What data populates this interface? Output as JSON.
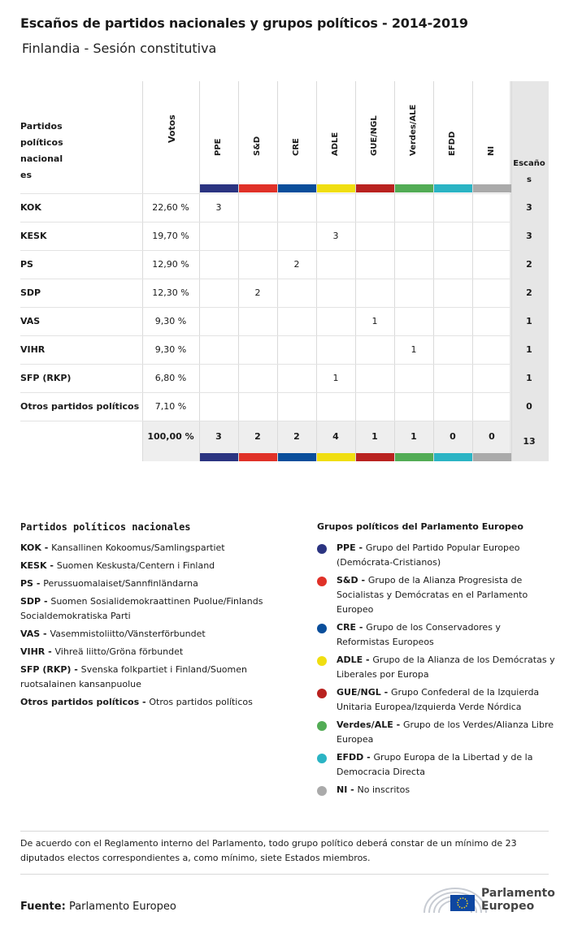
{
  "title": "Escaños de partidos nacionales y grupos políticos - 2014-2019",
  "subtitle": "Finlandia - Sesión constitutiva",
  "table": {
    "party_header": [
      "Partidos",
      "políticos",
      "nacional",
      "es"
    ],
    "votes_header": "Votos",
    "seats_header": [
      "Escaño",
      "s"
    ],
    "groups": [
      {
        "code": "PPE",
        "color": "#2b3481"
      },
      {
        "code": "S&D",
        "color": "#e03128"
      },
      {
        "code": "CRE",
        "color": "#0a4e9b"
      },
      {
        "code": "ADLE",
        "color": "#f0de11"
      },
      {
        "code": "GUE/NGL",
        "color": "#b9221f"
      },
      {
        "code": "Verdes/ALE",
        "color": "#52ac55"
      },
      {
        "code": "EFDD",
        "color": "#2bb4c4"
      },
      {
        "code": "NI",
        "color": "#aaaaaa"
      }
    ],
    "rows": [
      {
        "party": "KOK",
        "votes": "22,60 %",
        "group": 0,
        "value": "3",
        "seats": "3"
      },
      {
        "party": "KESK",
        "votes": "19,70 %",
        "group": 3,
        "value": "3",
        "seats": "3"
      },
      {
        "party": "PS",
        "votes": "12,90 %",
        "group": 2,
        "value": "2",
        "seats": "2"
      },
      {
        "party": "SDP",
        "votes": "12,30 %",
        "group": 1,
        "value": "2",
        "seats": "2"
      },
      {
        "party": "VAS",
        "votes": "9,30 %",
        "group": 4,
        "value": "1",
        "seats": "1"
      },
      {
        "party": "VIHR",
        "votes": "9,30 %",
        "group": 5,
        "value": "1",
        "seats": "1"
      },
      {
        "party": "SFP (RKP)",
        "votes": "6,80 %",
        "group": 3,
        "value": "1",
        "seats": "1"
      },
      {
        "party": "Otros partidos políticos",
        "votes": "7,10 %",
        "group": null,
        "value": "",
        "seats": "0"
      }
    ],
    "totals": {
      "votes": "100,00 %",
      "groups": [
        "3",
        "2",
        "2",
        "4",
        "1",
        "1",
        "0",
        "0"
      ],
      "seats": "13"
    }
  },
  "legend_national": {
    "title": "Partidos políticos nacionales",
    "items": [
      {
        "code": "KOK -",
        "lines": [
          "Kansallinen Kokoomus/Samlingspartiet"
        ]
      },
      {
        "code": "KESK -",
        "lines": [
          "Suomen Keskusta/Centern i Finland"
        ]
      },
      {
        "code": "PS -",
        "lines": [
          "Perussuomalaiset/Sannfinländarna"
        ]
      },
      {
        "code": "SDP -",
        "lines": [
          "Suomen Sosialidemokraattinen Puolue/Finlands",
          "Socialdemokratiska Parti"
        ]
      },
      {
        "code": "VAS -",
        "lines": [
          "Vasemmistoliitto/Vänsterförbundet"
        ]
      },
      {
        "code": "VIHR -",
        "lines": [
          "Vihreä liitto/Gröna förbundet"
        ]
      },
      {
        "code": "SFP (RKP) -",
        "lines": [
          "Svenska folkpartiet i Finland/Suomen",
          "ruotsalainen kansanpuolue"
        ]
      },
      {
        "code": "Otros partidos políticos -",
        "lines": [
          "Otros partidos políticos"
        ]
      }
    ]
  },
  "legend_groups": {
    "title": "Grupos políticos del Parlamento Europeo",
    "items": [
      {
        "code": "PPE -",
        "lines": [
          "Grupo del Partido Popular Europeo",
          "(Demócrata-Cristianos)"
        ],
        "color": "#2b3481"
      },
      {
        "code": "S&D -",
        "lines": [
          "Grupo de la Alianza Progresista de",
          "Socialistas y Demócratas en el Parlamento",
          "Europeo"
        ],
        "color": "#e03128"
      },
      {
        "code": "CRE -",
        "lines": [
          "Grupo de los Conservadores y",
          "Reformistas Europeos"
        ],
        "color": "#0a4e9b"
      },
      {
        "code": "ADLE -",
        "lines": [
          "Grupo de la Alianza de los Demócratas y",
          "Liberales por Europa"
        ],
        "color": "#f0de11"
      },
      {
        "code": "GUE/NGL -",
        "lines": [
          "Grupo Confederal de la Izquierda",
          "Unitaria Europea/Izquierda Verde Nórdica"
        ],
        "color": "#b9221f"
      },
      {
        "code": "Verdes/ALE -",
        "lines": [
          "Grupo de los Verdes/Alianza Libre",
          "Europea"
        ],
        "color": "#52ac55"
      },
      {
        "code": "EFDD -",
        "lines": [
          "Grupo Europa de la Libertad y de la",
          "Democracia Directa"
        ],
        "color": "#2bb4c4"
      },
      {
        "code": "NI -",
        "lines": [
          "No inscritos"
        ],
        "color": "#aaaaaa"
      }
    ]
  },
  "note": [
    "De acuerdo con el Reglamento interno del Parlamento, todo grupo político deberá constar de un mínimo de 23",
    "diputados electos correspondientes a, como mínimo, siete Estados miembros."
  ],
  "source": {
    "label": "Fuente:",
    "value": "Parlamento Europeo"
  },
  "logo": {
    "line1": "Parlamento",
    "line2": "Europeo"
  }
}
